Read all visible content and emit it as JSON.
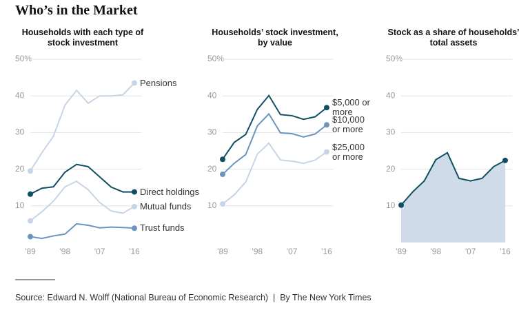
{
  "title": "Who’s in the Market",
  "source": "Source: Edward N. Wolff (National Bureau of Economic Research)  |  By The New York Times",
  "chart_data": [
    {
      "type": "line",
      "title": "Households with each type of stock investment",
      "x": [
        1989,
        1992,
        1995,
        1998,
        2001,
        2004,
        2007,
        2010,
        2013,
        2016
      ],
      "xlim": [
        1989,
        2016
      ],
      "xticks": [
        {
          "value": 1989,
          "label": "'89"
        },
        {
          "value": 1998,
          "label": "'98"
        },
        {
          "value": 2007,
          "label": "'07"
        },
        {
          "value": 2016,
          "label": "'16"
        }
      ],
      "ylim": [
        0,
        50
      ],
      "yticks": [
        10,
        20,
        30,
        40,
        {
          "value": 50,
          "label": "50%"
        }
      ],
      "grid": true,
      "series": [
        {
          "name": "Pensions",
          "color": "#c6d4e6",
          "values": [
            19.5,
            24.5,
            29,
            37.5,
            41.5,
            38,
            40,
            40,
            40.3,
            43.5
          ]
        },
        {
          "name": "Direct holdings",
          "color": "#0f4e63",
          "values": [
            13.2,
            14.8,
            15.2,
            19.2,
            21.3,
            20.7,
            17.9,
            15.1,
            13.8,
            13.8
          ]
        },
        {
          "name": "Mutual funds",
          "color": "#c6d4e6",
          "values": [
            5.9,
            8.4,
            11.3,
            15.2,
            16.7,
            14.4,
            10.9,
            8.6,
            8.0,
            9.8
          ]
        },
        {
          "name": "Trust funds",
          "color": "#6b95bd",
          "values": [
            1.6,
            1.1,
            1.8,
            2.3,
            5.1,
            4.7,
            4.0,
            4.2,
            4.1,
            3.9
          ]
        }
      ]
    },
    {
      "type": "line",
      "title": "Households’ stock investment, by value",
      "x": [
        1989,
        1992,
        1995,
        1998,
        2001,
        2004,
        2007,
        2010,
        2013,
        2016
      ],
      "xlim": [
        1989,
        2016
      ],
      "xticks": [
        {
          "value": 1989,
          "label": "'89"
        },
        {
          "value": 1998,
          "label": "'98"
        },
        {
          "value": 2007,
          "label": "'07"
        },
        {
          "value": 2016,
          "label": "'16"
        }
      ],
      "ylim": [
        0,
        50
      ],
      "yticks": [
        10,
        20,
        30,
        40,
        {
          "value": 50,
          "label": "50%"
        }
      ],
      "grid": true,
      "series": [
        {
          "name": "$5,000 or more",
          "color": "#0f4e63",
          "values": [
            22.7,
            27.3,
            29.5,
            36.3,
            40.1,
            34.9,
            34.6,
            33.6,
            34.3,
            36.8
          ]
        },
        {
          "name": "$10,000 or more",
          "color": "#6b95bd",
          "values": [
            18.6,
            21.6,
            24.0,
            31.8,
            35.1,
            29.9,
            29.7,
            28.8,
            29.6,
            32.1
          ]
        },
        {
          "name": "$25,000 or more",
          "color": "#c6d4e6",
          "values": [
            10.5,
            13.0,
            16.5,
            24.1,
            27.1,
            22.5,
            22.2,
            21.6,
            22.5,
            24.7
          ]
        }
      ]
    },
    {
      "type": "area",
      "title": "Stock as a share of households’ total assets",
      "x": [
        1989,
        1992,
        1995,
        1998,
        2001,
        2004,
        2007,
        2010,
        2013,
        2016
      ],
      "xlim": [
        1989,
        2016
      ],
      "xticks": [
        {
          "value": 1989,
          "label": "'89"
        },
        {
          "value": 1998,
          "label": "'98"
        },
        {
          "value": 2007,
          "label": "'07"
        },
        {
          "value": 2016,
          "label": "'16"
        }
      ],
      "ylim": [
        0,
        50
      ],
      "yticks": [
        10,
        20,
        30,
        40,
        {
          "value": 50,
          "label": "50%"
        }
      ],
      "grid": true,
      "color": "#0f4e63",
      "fill": "#cfdbe9",
      "values": [
        10.2,
        13.8,
        16.8,
        22.6,
        24.5,
        17.5,
        16.8,
        17.5,
        20.7,
        22.4
      ]
    }
  ]
}
